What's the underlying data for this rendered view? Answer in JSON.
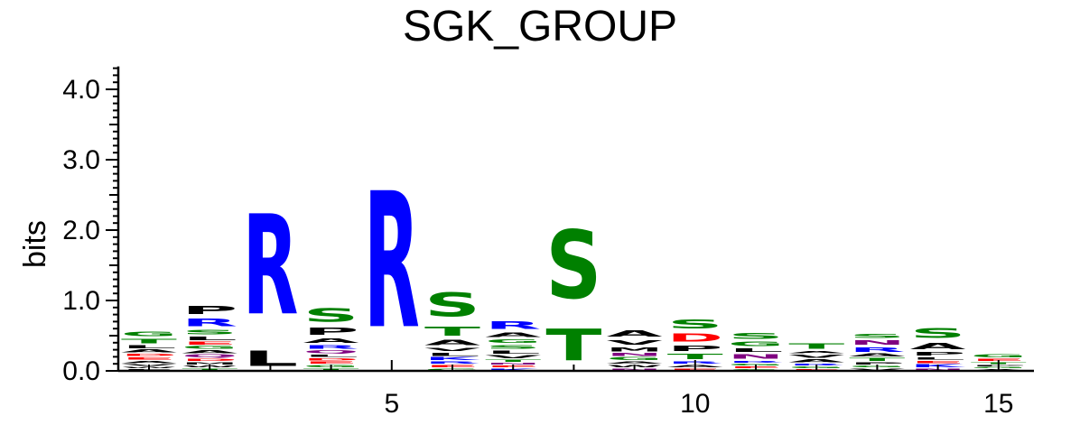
{
  "chart_data": {
    "type": "sequence-logo",
    "title": "SGK_GROUP",
    "ylabel": "bits",
    "xlabel": "",
    "ylim": [
      0,
      4.3
    ],
    "y_ticks": [
      {
        "value": 0.0,
        "label": "0.0"
      },
      {
        "value": 1.0,
        "label": "1.0"
      },
      {
        "value": 2.0,
        "label": "2.0"
      },
      {
        "value": 3.0,
        "label": "3.0"
      },
      {
        "value": 4.0,
        "label": "4.0"
      }
    ],
    "x_ticks": [
      {
        "value": 5,
        "label": "5"
      },
      {
        "value": 10,
        "label": "10"
      },
      {
        "value": 15,
        "label": "15"
      }
    ],
    "colors": {
      "R": "#0000ff",
      "K": "#0000ff",
      "H": "#0000ff",
      "S": "#008000",
      "T": "#008000",
      "G": "#008000",
      "C": "#008000",
      "Y": "#008000",
      "D": "#ff0000",
      "E": "#ff0000",
      "N": "#800080",
      "Q": "#800080",
      "P": "#000000",
      "A": "#000000",
      "L": "#000000",
      "V": "#000000",
      "M": "#000000",
      "I": "#000000",
      "F": "#000000",
      "W": "#000000"
    },
    "positions": [
      {
        "position": 1,
        "letters": [
          [
            "F",
            0.03
          ],
          [
            "W",
            0.03
          ],
          [
            "V",
            0.04
          ],
          [
            "A",
            0.05
          ],
          [
            "E",
            0.05
          ],
          [
            "D",
            0.05
          ],
          [
            "A",
            0.06
          ],
          [
            "L",
            0.06
          ],
          [
            "T",
            0.1
          ],
          [
            "G",
            0.1
          ]
        ]
      },
      {
        "position": 2,
        "letters": [
          [
            "T",
            0.04
          ],
          [
            "W",
            0.04
          ],
          [
            "M",
            0.05
          ],
          [
            "D",
            0.05
          ],
          [
            "Q",
            0.06
          ],
          [
            "A",
            0.06
          ],
          [
            "G",
            0.06
          ],
          [
            "E",
            0.06
          ],
          [
            "L",
            0.08
          ],
          [
            "S",
            0.1
          ],
          [
            "R",
            0.17
          ],
          [
            "P",
            0.18
          ]
        ]
      },
      {
        "position": 3,
        "letters": [
          [
            "L",
            0.35
          ],
          [
            "R",
            2.28
          ]
        ]
      },
      {
        "position": 4,
        "letters": [
          [
            "T",
            0.04
          ],
          [
            "G",
            0.05
          ],
          [
            "E",
            0.05
          ],
          [
            "D",
            0.05
          ],
          [
            "L",
            0.05
          ],
          [
            "Q",
            0.06
          ],
          [
            "R",
            0.08
          ],
          [
            "A",
            0.1
          ],
          [
            "P",
            0.16
          ],
          [
            "S",
            0.3
          ]
        ]
      },
      {
        "position": 5,
        "letters": [
          [
            "R",
            3.1
          ]
        ]
      },
      {
        "position": 6,
        "letters": [
          [
            "G",
            0.04
          ],
          [
            "E",
            0.05
          ],
          [
            "R",
            0.05
          ],
          [
            "K",
            0.06
          ],
          [
            "L",
            0.07
          ],
          [
            "V",
            0.07
          ],
          [
            "A",
            0.12
          ],
          [
            "T",
            0.2
          ],
          [
            "S",
            0.55
          ]
        ]
      },
      {
        "position": 7,
        "letters": [
          [
            "K",
            0.04
          ],
          [
            "E",
            0.04
          ],
          [
            "N",
            0.04
          ],
          [
            "T",
            0.05
          ],
          [
            "V",
            0.06
          ],
          [
            "L",
            0.07
          ],
          [
            "S",
            0.08
          ],
          [
            "G",
            0.08
          ],
          [
            "A",
            0.1
          ],
          [
            "R",
            0.17
          ]
        ]
      },
      {
        "position": 8,
        "letters": [
          [
            "T",
            0.72
          ],
          [
            "S",
            1.55
          ]
        ]
      },
      {
        "position": 9,
        "letters": [
          [
            "N",
            0.04
          ],
          [
            "W",
            0.05
          ],
          [
            "A",
            0.05
          ],
          [
            "G",
            0.06
          ],
          [
            "N",
            0.06
          ],
          [
            "M",
            0.09
          ],
          [
            "V",
            0.11
          ],
          [
            "A",
            0.14
          ]
        ]
      },
      {
        "position": 10,
        "letters": [
          [
            "E",
            0.04
          ],
          [
            "A",
            0.05
          ],
          [
            "R",
            0.05
          ],
          [
            "T",
            0.12
          ],
          [
            "P",
            0.12
          ],
          [
            "D",
            0.18
          ],
          [
            "S",
            0.2
          ]
        ]
      },
      {
        "position": 11,
        "letters": [
          [
            "S",
            0.03
          ],
          [
            "E",
            0.04
          ],
          [
            "G",
            0.04
          ],
          [
            "R",
            0.04
          ],
          [
            "N",
            0.1
          ],
          [
            "L",
            0.08
          ],
          [
            "G",
            0.1
          ],
          [
            "S",
            0.13
          ]
        ]
      },
      {
        "position": 12,
        "letters": [
          [
            "E",
            0.03
          ],
          [
            "G",
            0.04
          ],
          [
            "R",
            0.04
          ],
          [
            "A",
            0.06
          ],
          [
            "V",
            0.07
          ],
          [
            "A",
            0.05
          ],
          [
            "T",
            0.12
          ]
        ]
      },
      {
        "position": 13,
        "letters": [
          [
            "V",
            0.04
          ],
          [
            "G",
            0.04
          ],
          [
            "P",
            0.05
          ],
          [
            "T",
            0.06
          ],
          [
            "A",
            0.06
          ],
          [
            "R",
            0.1
          ],
          [
            "N",
            0.1
          ],
          [
            "S",
            0.09
          ]
        ]
      },
      {
        "position": 14,
        "letters": [
          [
            "N",
            0.04
          ],
          [
            "K",
            0.06
          ],
          [
            "E",
            0.05
          ],
          [
            "L",
            0.05
          ],
          [
            "P",
            0.08
          ],
          [
            "A",
            0.14
          ],
          [
            "S",
            0.22
          ]
        ]
      },
      {
        "position": 15,
        "letters": [
          [
            "A",
            0.03
          ],
          [
            "G",
            0.03
          ],
          [
            "P",
            0.03
          ],
          [
            "T",
            0.04
          ],
          [
            "E",
            0.05
          ],
          [
            "G",
            0.06
          ]
        ]
      }
    ]
  }
}
